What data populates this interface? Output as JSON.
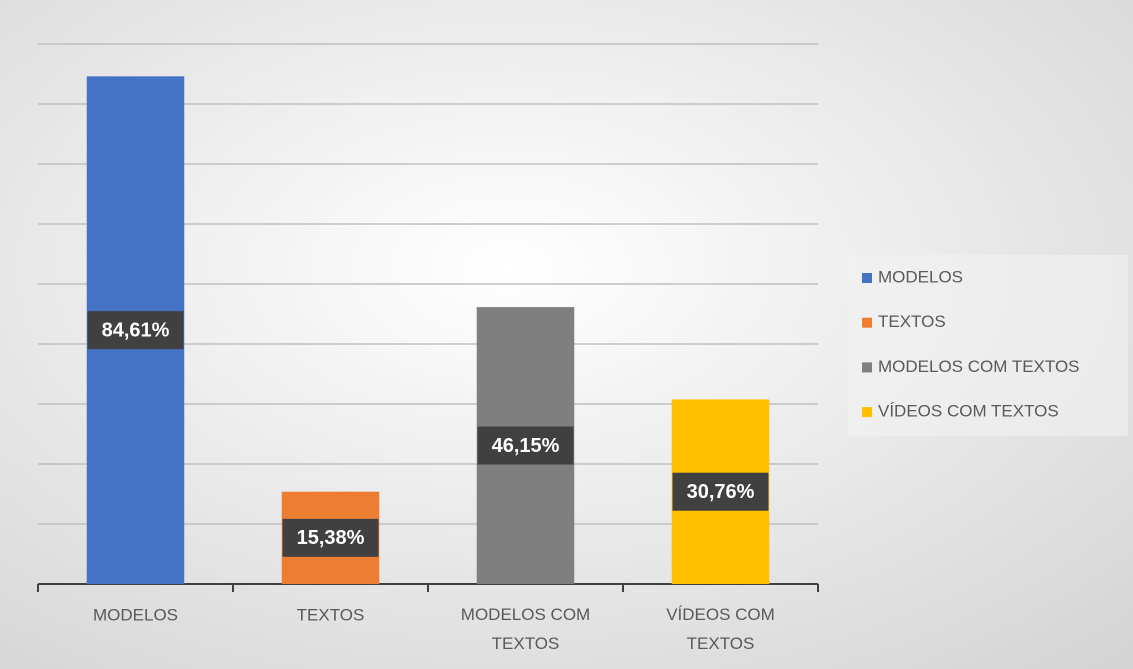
{
  "chart_data": {
    "type": "bar",
    "categories": [
      "MODELOS",
      "TEXTOS",
      "MODELOS COM TEXTOS",
      "VÍDEOS COM TEXTOS"
    ],
    "values": [
      84.61,
      15.38,
      46.15,
      30.76
    ],
    "value_labels": [
      "84,61%",
      "15,38%",
      "46,15%",
      "30,76%"
    ],
    "colors": [
      "#4472c4",
      "#ed7d31",
      "#7f7f7f",
      "#ffc000"
    ],
    "ylim": [
      0,
      90
    ],
    "yticks": [
      0,
      10,
      20,
      30,
      40,
      50,
      60,
      70,
      80,
      90
    ],
    "grid": true,
    "legend": "right"
  }
}
